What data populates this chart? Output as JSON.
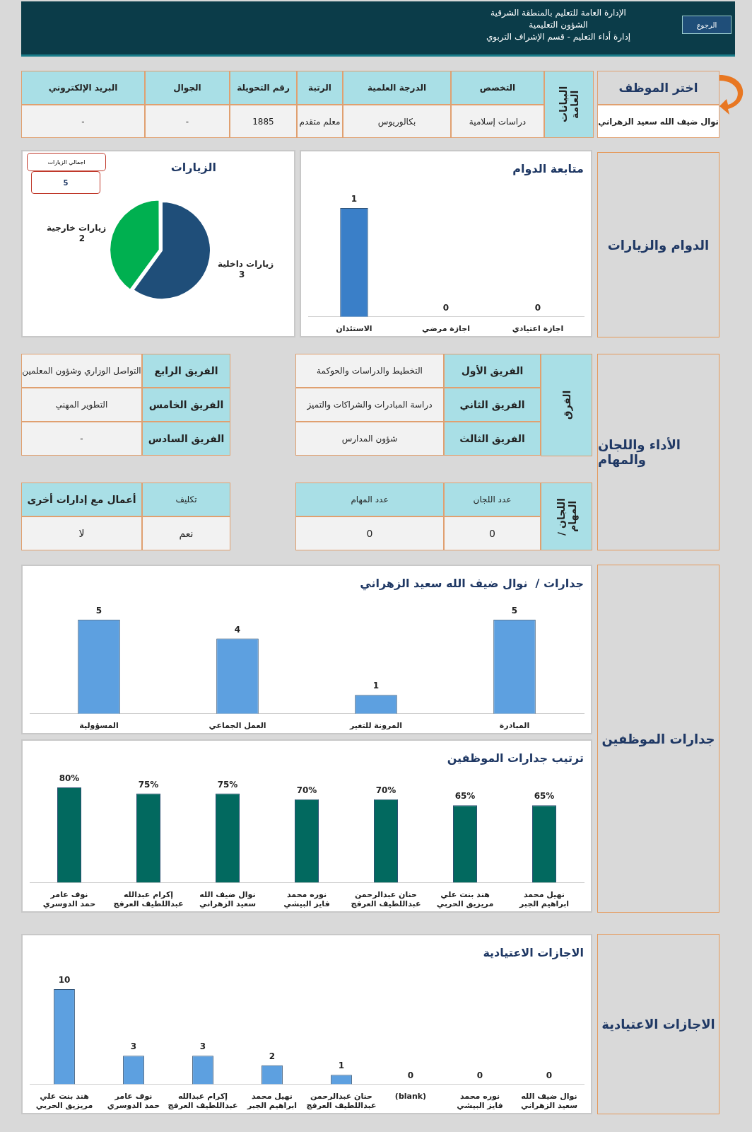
{
  "chart_data": [
    {
      "type": "other",
      "title": "الإدارة العامة للتعليم بالمنطقة الشرقية",
      "annotations": [
        "الشؤون التعليمية",
        "إدارة أداء التعليم  -  قسم الإشراف التربوي",
        "الرجوع"
      ]
    },
    {
      "type": "other",
      "title": "اختر الموظف",
      "annotations": [
        "نوال ضيف الله سعيد الزهراني"
      ]
    },
    {
      "type": "other",
      "title": "البيانات العامة",
      "annotations": [
        "التخصص",
        "الدرجة العلمية",
        "الرتبة",
        "رقم التحويلة",
        "الجوال",
        "البريد الإلكتروني",
        "دراسات إسلامية",
        "بكالوريوس",
        "معلم متقدم",
        "1885",
        "-",
        "-"
      ]
    },
    {
      "type": "other",
      "title": "الدوام والزيارات"
    },
    {
      "type": "bar",
      "title": "متابعة الدوام",
      "categories": [
        "الاستئذان",
        "اجازة مرضي",
        "اجازة اعتيادي"
      ],
      "values": [
        1,
        0,
        0
      ],
      "color": "#3a7fc8",
      "data_labels": true,
      "tick_labels": "x",
      "grid": false,
      "legend": false
    },
    {
      "type": "pie",
      "title": "الزيارات",
      "categories": [
        "زيارات داخلية",
        "زيارات خارجية"
      ],
      "values": [
        3,
        2
      ],
      "colors": [
        "#1f4e79",
        "#00b050"
      ],
      "data_labels": true,
      "legend": false,
      "annotations": [
        "اجمالي الزيارات",
        "5"
      ]
    },
    {
      "type": "other",
      "title": "الأداء واللجان والمهام"
    },
    {
      "type": "other",
      "title": "الفرق",
      "annotations": [
        "الفريق الأول",
        "التخطيط والدراسات والحوكمة",
        "الفريق الثاني",
        "دراسة المبادرات والشراكات والتميز",
        "الفريق الثالث",
        "شؤون المدارس",
        "الفريق الرابع",
        "التواصل الوزاري وشؤون المعلمين",
        "الفريق الخامس",
        "التطوير المهني",
        "الفريق السادس",
        "-"
      ]
    },
    {
      "type": "other",
      "title": "اللجان / المهام",
      "annotations": [
        "عدد اللجان",
        "عدد المهام",
        "0",
        "0"
      ]
    },
    {
      "type": "other",
      "annotations": [
        "تكليف",
        "أعمال مع إدارات أخرى",
        "نعم",
        "لا"
      ]
    },
    {
      "type": "other",
      "title": "جدارات الموظفين"
    },
    {
      "type": "bar",
      "title": "جدارات /  نوال ضيف الله سعيد الزهراني",
      "categories": [
        "المسؤولية",
        "العمل الجماعي",
        "المرونة للتغير",
        "المبادرة"
      ],
      "values": [
        5,
        4,
        1,
        5
      ],
      "color": "#5da0e0",
      "data_labels": true,
      "tick_labels": "x",
      "grid": false,
      "legend": false
    },
    {
      "type": "bar",
      "title": "ترتيب جدارات الموظفين",
      "categories": [
        "نوف عامر حمد الدوسري",
        "إكرام عبدالله عبداللطيف العرفج",
        "نوال ضيف الله سعيد الزهراني",
        "نوره محمد فايز البيشي",
        "حنان عبدالرحمن عبداللطيف العرفج",
        "هند بنت علي مريزيق الحربي",
        "نهيل محمد ابراهيم الجبر"
      ],
      "values": [
        80,
        75,
        75,
        70,
        70,
        65,
        65
      ],
      "value_labels": [
        "80%",
        "75%",
        "75%",
        "70%",
        "70%",
        "65%",
        "65%"
      ],
      "color": "#02695f",
      "tick_labels": "x",
      "grid": false,
      "legend": false
    },
    {
      "type": "other",
      "title": "الاجازات الاعتيادية"
    },
    {
      "type": "bar",
      "title": "الاجازات الاعتيادية",
      "categories": [
        "هند بنت علي مريزيق الحربي",
        "نوف عامر حمد الدوسري",
        "إكرام عبدالله عبداللطيف العرفج",
        "نهيل محمد ابراهيم الجبر",
        "حنان عبدالرحمن عبداللطيف العرفج",
        "(blank)",
        "نوره محمد فايز البيشي",
        "نوال ضيف الله سعيد الزهراني"
      ],
      "values": [
        10,
        3,
        3,
        2,
        1,
        0,
        0,
        0
      ],
      "color": "#5da0e0",
      "data_labels": true,
      "tick_labels": "x",
      "grid": false,
      "legend": false
    }
  ]
}
